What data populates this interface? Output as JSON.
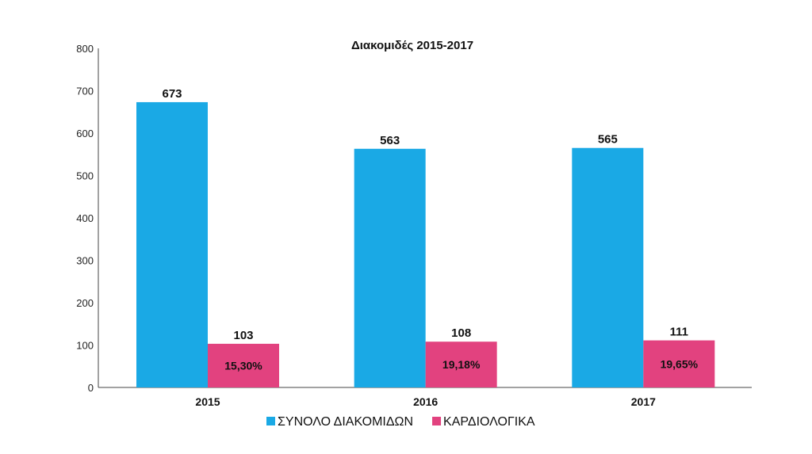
{
  "chart_data": {
    "type": "bar",
    "title": "Διακομιδές 2015-2017",
    "categories": [
      "2015",
      "2016",
      "2017"
    ],
    "series": [
      {
        "name": "ΣΥΝΟΛΟ ΔΙΑΚΟΜΙΔΩΝ",
        "color": "#1aa9e5",
        "values": [
          673,
          563,
          565
        ]
      },
      {
        "name": "ΚΑΡΔΙΟΛΟΓΙΚΑ",
        "color": "#e2427f",
        "values": [
          103,
          108,
          111
        ]
      }
    ],
    "inner_labels": [
      "15,30%",
      "19,18%",
      "19,65%"
    ],
    "ylim": [
      0,
      800
    ],
    "yticks": [
      0,
      100,
      200,
      300,
      400,
      500,
      600,
      700,
      800
    ],
    "grid": false,
    "legend_position": "bottom"
  }
}
